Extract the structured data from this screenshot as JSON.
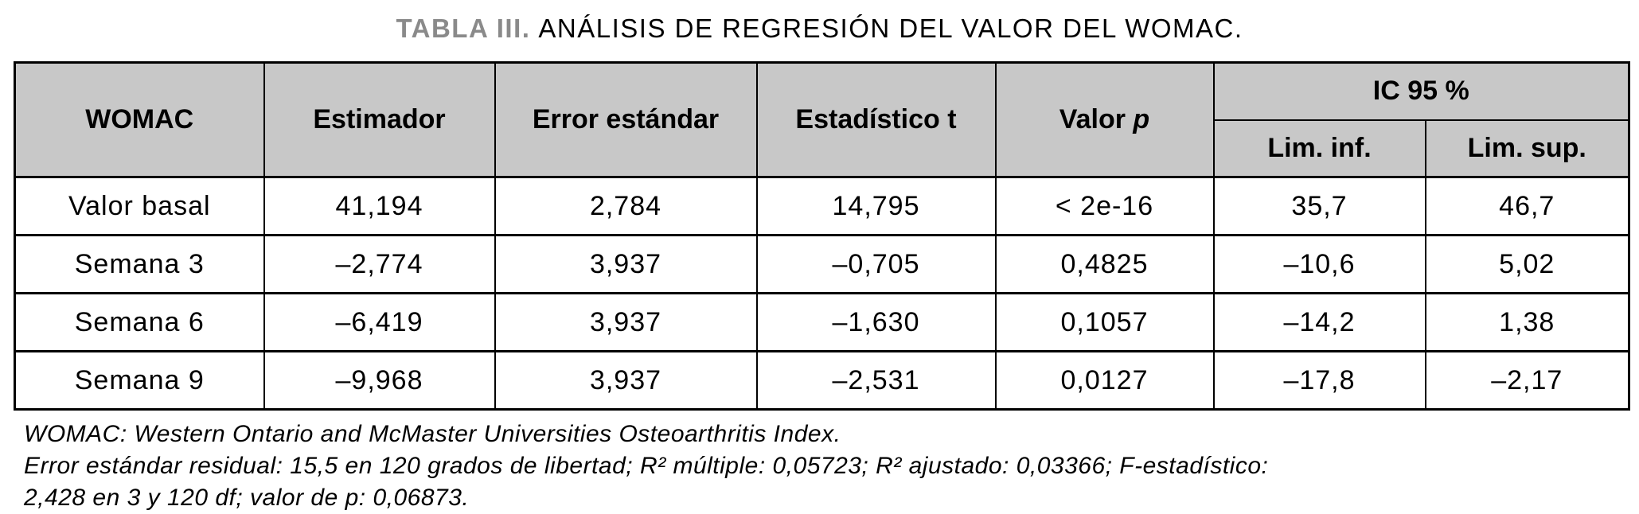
{
  "title": {
    "label": "TABLA III.",
    "text": "ANÁLISIS DE REGRESIÓN DEL VALOR DEL WOMAC."
  },
  "colors": {
    "header_bg": "#c8c8c8",
    "title_label": "#8a8a8a",
    "border": "#000000"
  },
  "table": {
    "headers": {
      "womac": "WOMAC",
      "estimador": "Estimador",
      "error_estandar": "Error estándar",
      "estadistico_t": "Estadístico t",
      "valor_p_prefix": "Valor ",
      "valor_p_italic": "p",
      "ic95": "IC 95 %",
      "lim_inf": "Lim. inf.",
      "lim_sup": "Lim. sup."
    },
    "rows": [
      [
        "Valor basal",
        "41,194",
        "2,784",
        "14,795",
        "< 2e-16",
        "35,7",
        "46,7"
      ],
      [
        "Semana 3",
        "–2,774",
        "3,937",
        "–0,705",
        "0,4825",
        "–10,6",
        "5,02"
      ],
      [
        "Semana 6",
        "–6,419",
        "3,937",
        "–1,630",
        "0,1057",
        "–14,2",
        "1,38"
      ],
      [
        "Semana 9",
        "–9,968",
        "3,937",
        "–2,531",
        "0,0127",
        "–17,8",
        "–2,17"
      ]
    ]
  },
  "footnotes": [
    "WOMAC: Western Ontario and McMaster Universities Osteoarthritis Index.",
    "Error estándar residual: 15,5 en 120 grados de libertad; R² múltiple: 0,05723; R² ajustado: 0,03366; F-estadístico:",
    "2,428 en 3 y 120 df; valor de p: 0,06873."
  ]
}
